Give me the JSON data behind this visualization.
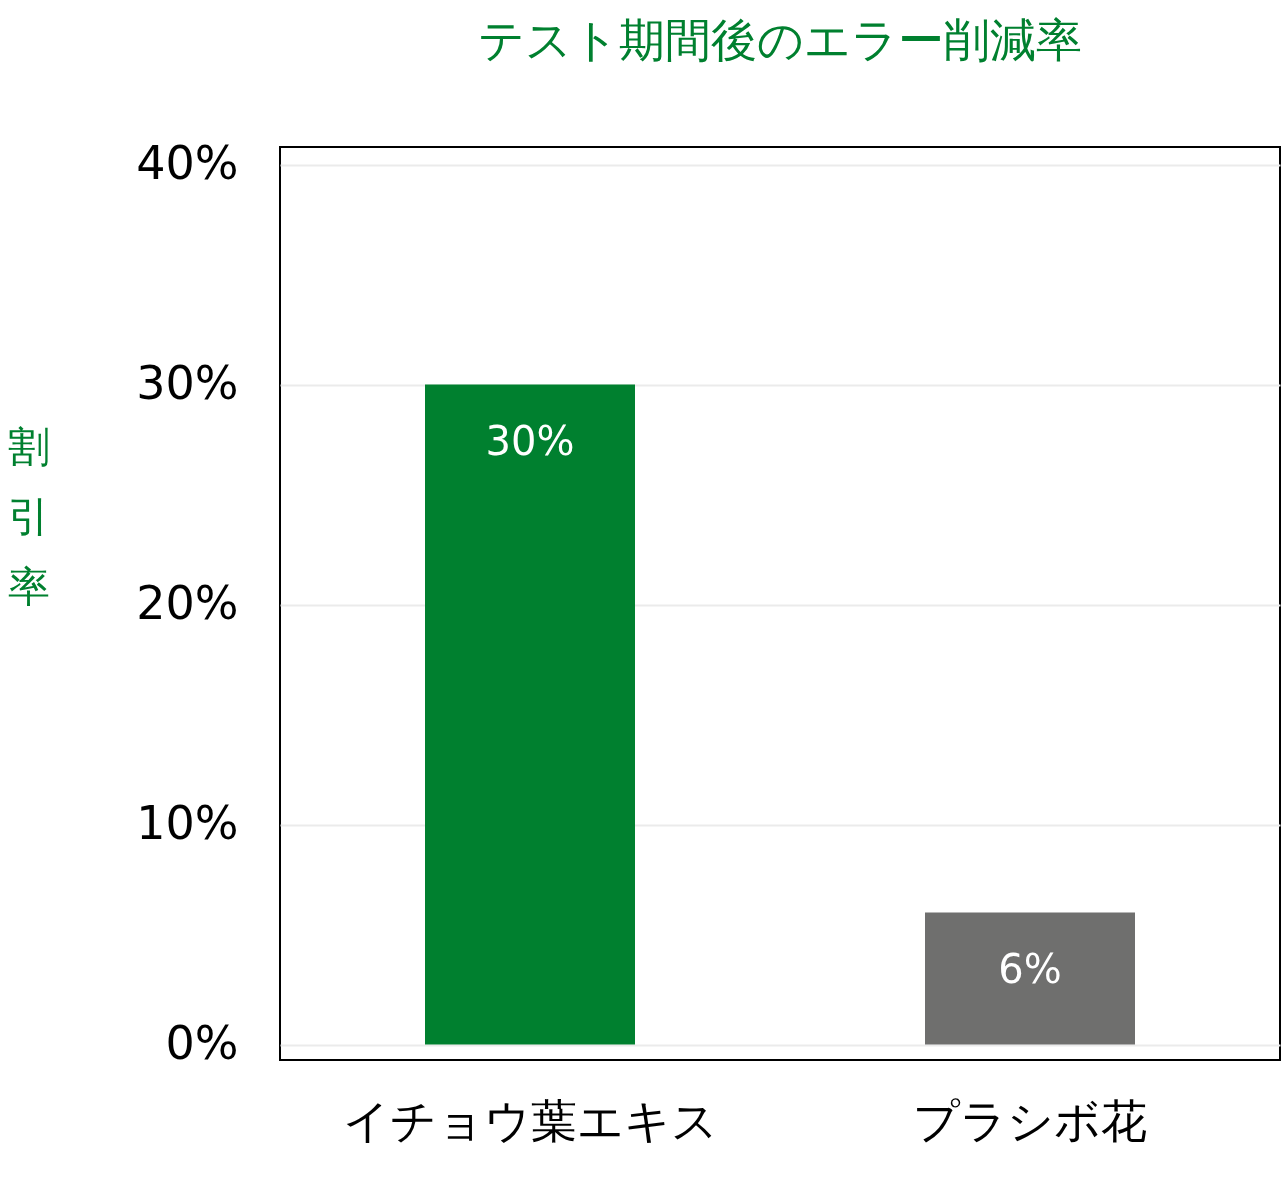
{
  "chart_data": {
    "type": "bar",
    "title": "テスト期間後のエラー削減率",
    "ylabel": "割引率",
    "categories": [
      "イチョウ葉エキス",
      "プラシボ花"
    ],
    "values": [
      30,
      6
    ],
    "colors": [
      "#00802f",
      "#6f6f6e"
    ],
    "ylim": [
      -0.7,
      40.8
    ],
    "yticks": [
      {
        "value": 0,
        "label": "0%"
      },
      {
        "value": 10,
        "label": "10%"
      },
      {
        "value": 20,
        "label": "20%"
      },
      {
        "value": 30,
        "label": "30%"
      },
      {
        "value": 40,
        "label": "40%"
      }
    ],
    "value_labels": [
      "30%",
      "6%"
    ],
    "grid": "y"
  }
}
